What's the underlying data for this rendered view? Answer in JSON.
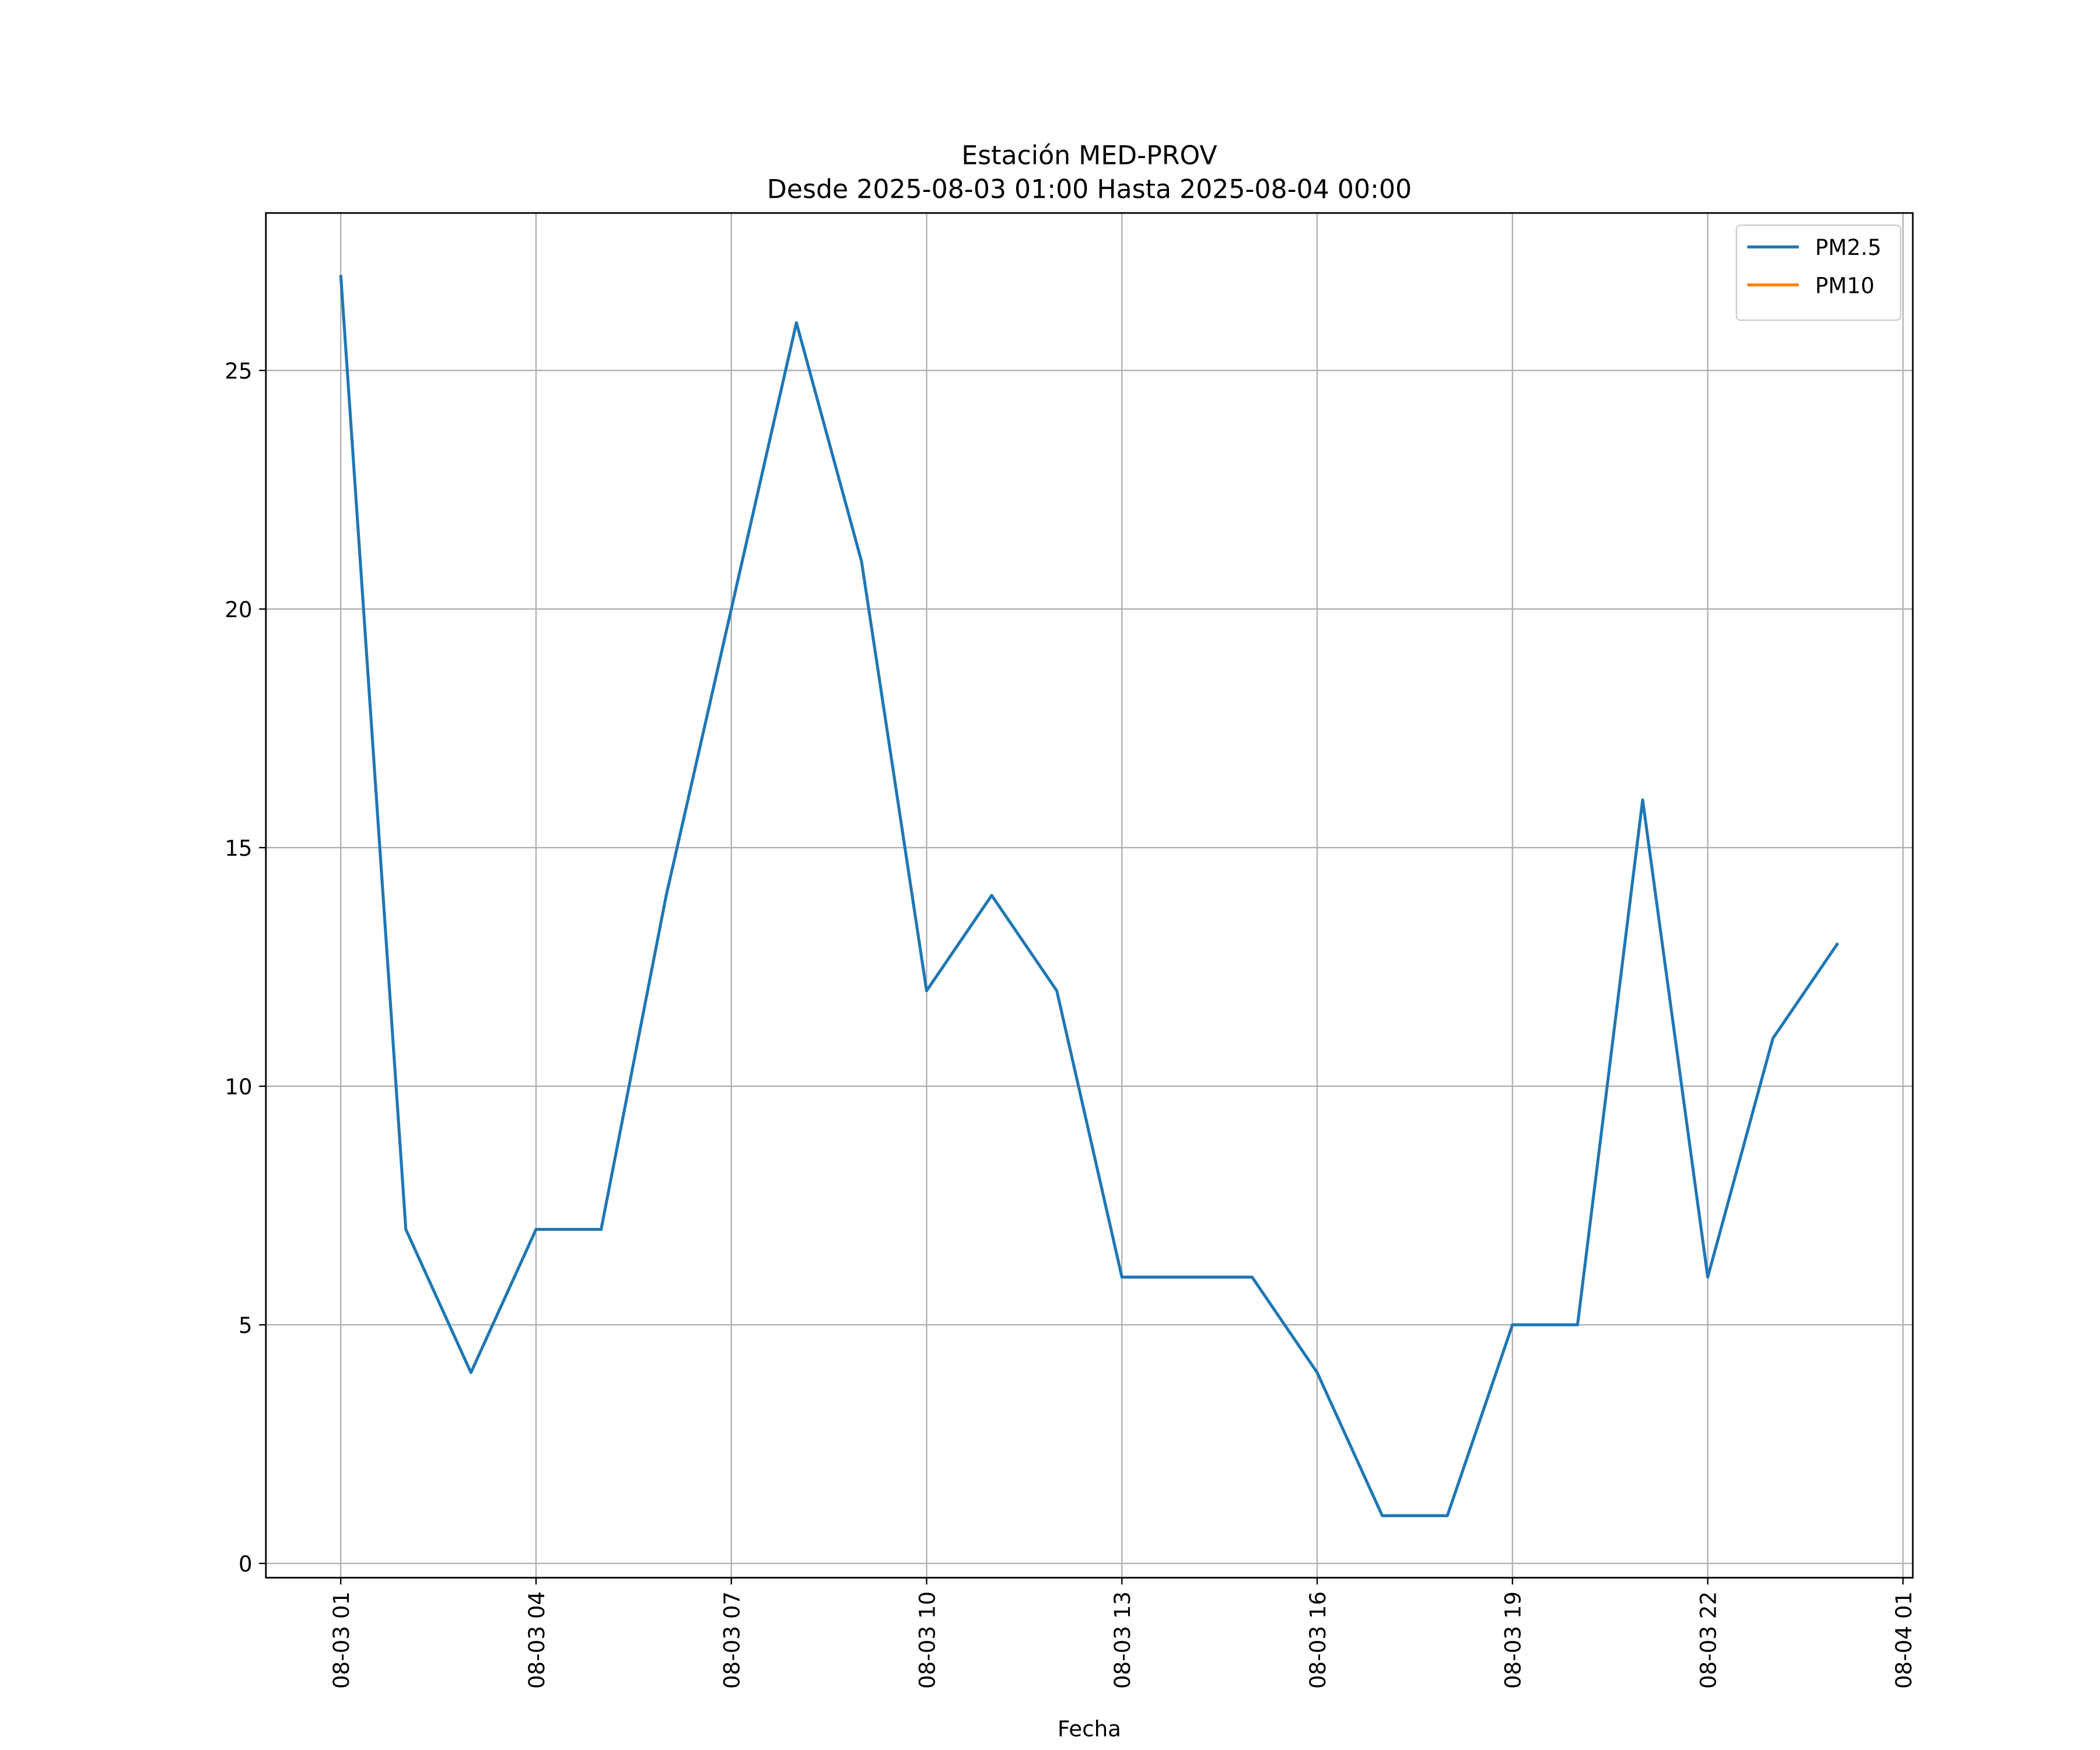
{
  "chart_data": {
    "type": "line",
    "title": "Estación MED-PROV",
    "subtitle": "Desde 2025-08-03 01:00 Hasta 2025-08-04 00:00",
    "xlabel": "Fecha",
    "x": [
      "08-03 01",
      "08-03 02",
      "08-03 03",
      "08-03 04",
      "08-03 05",
      "08-03 06",
      "08-03 07",
      "08-03 08",
      "08-03 09",
      "08-03 10",
      "08-03 11",
      "08-03 12",
      "08-03 13",
      "08-03 14",
      "08-03 15",
      "08-03 16",
      "08-03 17",
      "08-03 18",
      "08-03 19",
      "08-03 20",
      "08-03 21",
      "08-03 22",
      "08-03 23",
      "08-04 00"
    ],
    "series": [
      {
        "name": "PM2.5",
        "color": "#1f77b4",
        "values": [
          27,
          7,
          4,
          7,
          7,
          14,
          20,
          26,
          21,
          12,
          14,
          12,
          6,
          6,
          6,
          4,
          1,
          1,
          5,
          5,
          16,
          6,
          11,
          13
        ]
      },
      {
        "name": "PM10",
        "color": "#ff7f0e",
        "values": [
          null,
          null,
          null,
          null,
          null,
          null,
          null,
          null,
          null,
          null,
          null,
          null,
          null,
          null,
          null,
          null,
          null,
          null,
          null,
          null,
          null,
          null,
          null,
          null
        ]
      }
    ],
    "xlim": [
      "08-02 23:51",
      "08-04 01:09"
    ],
    "xticks": [
      "08-03 01",
      "08-03 04",
      "08-03 07",
      "08-03 10",
      "08-03 13",
      "08-03 16",
      "08-03 19",
      "08-03 22",
      "08-04 01"
    ],
    "ylim": [
      -0.3,
      28.3
    ],
    "yticks": [
      0,
      5,
      10,
      15,
      20,
      25
    ],
    "grid": true,
    "legend": "upper right"
  }
}
